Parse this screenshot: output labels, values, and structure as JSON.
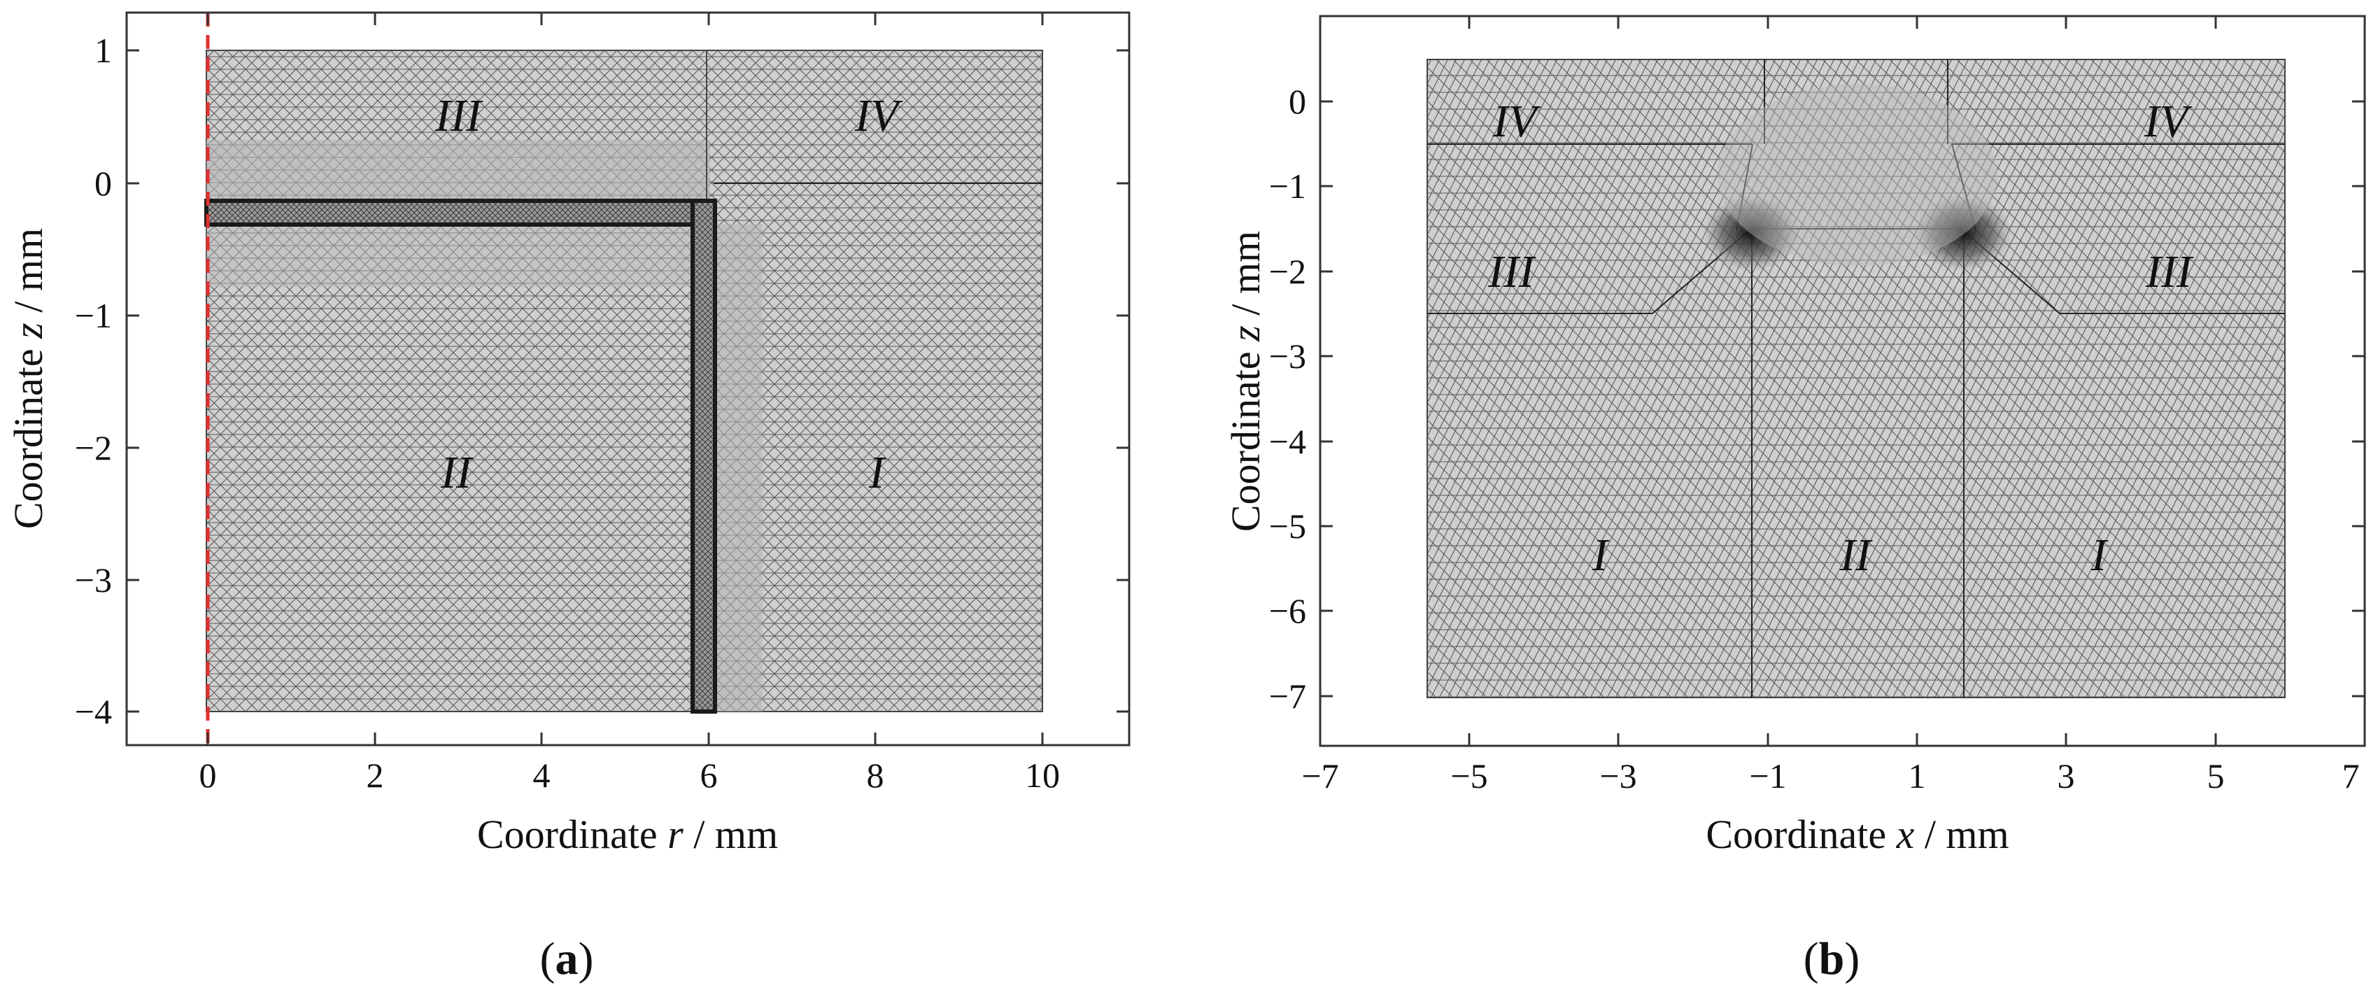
{
  "panel_a": {
    "caption_prefix": "(",
    "caption_letter": "a",
    "caption_suffix": ")",
    "xlabel_prefix": "Coordinate ",
    "xlabel_var": "r",
    "xlabel_unit": " / mm",
    "ylabel_prefix": "Coordinate ",
    "ylabel_var": "z",
    "ylabel_unit": " / mm",
    "xlim": [
      -1,
      11
    ],
    "ylim": [
      -4.25,
      1.25
    ],
    "xticks": [
      "0",
      "2",
      "4",
      "6",
      "8",
      "10"
    ],
    "yticks": [
      "1",
      "0",
      "−1",
      "−2",
      "−3",
      "−4"
    ],
    "regions": [
      "III",
      "IV",
      "II",
      "I"
    ],
    "domain": {
      "r": [
        0,
        10
      ],
      "z": [
        -4,
        1
      ]
    },
    "symmetry_axis_color": "#e03030",
    "mesh_fill": "#cfcfcf",
    "mesh_line": "#555555"
  },
  "panel_b": {
    "caption_prefix": "(",
    "caption_letter": "b",
    "caption_suffix": ")",
    "xlabel_prefix": "Coordinate ",
    "xlabel_var": "x",
    "xlabel_unit": " / mm",
    "ylabel_prefix": "Coordinate ",
    "ylabel_var": "z",
    "ylabel_unit": " / mm",
    "xlim": [
      -7,
      7
    ],
    "ylim": [
      -7.5,
      1
    ],
    "xticks": [
      "−7",
      "−5",
      "−3",
      "−1",
      "1",
      "3",
      "5",
      "7"
    ],
    "yticks": [
      "0",
      "−1",
      "−2",
      "−3",
      "−4",
      "−5",
      "−6",
      "−7"
    ],
    "regions": [
      "IV",
      "IV",
      "III",
      "III",
      "I",
      "II",
      "I"
    ],
    "domain": {
      "x": [
        -6,
        6
      ],
      "z": [
        -7,
        0.5
      ]
    },
    "mesh_fill": "#cfcfcf",
    "mesh_line": "#555555"
  }
}
